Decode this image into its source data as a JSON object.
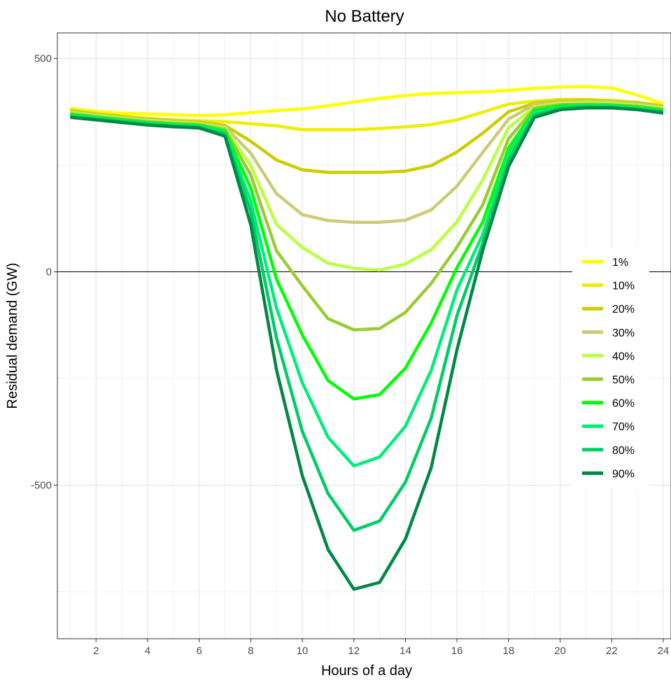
{
  "chart_data": {
    "type": "line",
    "title": "No Battery",
    "xlabel": "Hours of a day",
    "ylabel": "Residual demand (GW)",
    "xlim": [
      0.5,
      24.3
    ],
    "ylim": [
      -860,
      560
    ],
    "x_ticks": [
      2,
      4,
      6,
      8,
      10,
      12,
      14,
      16,
      18,
      20,
      22,
      24
    ],
    "x_tick_labels": [
      "2",
      "4",
      "6",
      "8",
      "10",
      "12",
      "14",
      "16",
      "18",
      "20",
      "22",
      "24"
    ],
    "y_ticks": [
      500,
      0,
      -500
    ],
    "y_tick_labels": [
      "500",
      "0",
      "-500"
    ],
    "grid": true,
    "zero_line": true,
    "legend_position": "right",
    "x": [
      1,
      2,
      3,
      4,
      5,
      6,
      7,
      8,
      9,
      10,
      11,
      12,
      13,
      14,
      15,
      16,
      17,
      18,
      19,
      20,
      21,
      22,
      23,
      24
    ],
    "series": [
      {
        "name": "1%",
        "color": "#ffff00",
        "values": [
          383,
          376,
          372,
          370,
          368,
          366,
          368,
          373,
          378,
          382,
          389,
          398,
          406,
          413,
          418,
          420,
          422,
          425,
          430,
          433,
          434,
          431,
          414,
          394
        ]
      },
      {
        "name": "10%",
        "color": "#eeee00",
        "values": [
          380,
          372,
          365,
          360,
          356,
          354,
          352,
          347,
          342,
          333,
          333,
          333,
          336,
          340,
          345,
          356,
          374,
          393,
          400,
          404,
          404,
          402,
          397,
          390
        ]
      },
      {
        "name": "20%",
        "color": "#cccc00",
        "values": [
          378,
          370,
          364,
          358,
          354,
          351,
          343,
          306,
          262,
          239,
          233,
          233,
          233,
          236,
          249,
          281,
          325,
          375,
          395,
          401,
          402,
          400,
          396,
          388
        ]
      },
      {
        "name": "30%",
        "color": "#cccc77",
        "values": [
          375,
          368,
          362,
          356,
          352,
          349,
          340,
          278,
          183,
          134,
          120,
          116,
          116,
          121,
          145,
          201,
          280,
          358,
          392,
          398,
          399,
          398,
          393,
          386
        ]
      },
      {
        "name": "40%",
        "color": "#bbff44",
        "values": [
          373,
          366,
          360,
          354,
          350,
          347,
          337,
          249,
          111,
          57,
          20,
          8,
          4,
          18,
          52,
          117,
          216,
          338,
          386,
          395,
          396,
          395,
          390,
          383
        ]
      },
      {
        "name": "50%",
        "color": "#99cc33",
        "values": [
          371,
          364,
          358,
          352,
          348,
          345,
          334,
          227,
          49,
          -33,
          -110,
          -136,
          -133,
          -95,
          -27,
          58,
          157,
          312,
          383,
          392,
          393,
          392,
          388,
          381
        ]
      },
      {
        "name": "60%",
        "color": "#00ff00",
        "values": [
          369,
          362,
          356,
          350,
          346,
          343,
          330,
          196,
          -17,
          -148,
          -255,
          -298,
          -288,
          -226,
          -120,
          10,
          117,
          290,
          378,
          389,
          391,
          390,
          386,
          379
        ]
      },
      {
        "name": "70%",
        "color": "#00ee77",
        "values": [
          367,
          360,
          354,
          348,
          344,
          341,
          327,
          166,
          -85,
          -260,
          -388,
          -455,
          -434,
          -362,
          -231,
          -42,
          88,
          276,
          373,
          386,
          389,
          388,
          384,
          377
        ]
      },
      {
        "name": "80%",
        "color": "#00cc66",
        "values": [
          365,
          358,
          352,
          346,
          342,
          339,
          323,
          140,
          -155,
          -374,
          -520,
          -606,
          -584,
          -493,
          -343,
          -102,
          67,
          262,
          367,
          383,
          387,
          386,
          382,
          375
        ]
      },
      {
        "name": "90%",
        "color": "#008844",
        "values": [
          362,
          356,
          350,
          344,
          340,
          337,
          318,
          110,
          -230,
          -478,
          -651,
          -744,
          -728,
          -626,
          -459,
          -182,
          51,
          247,
          362,
          380,
          384,
          384,
          380,
          372
        ]
      }
    ]
  }
}
